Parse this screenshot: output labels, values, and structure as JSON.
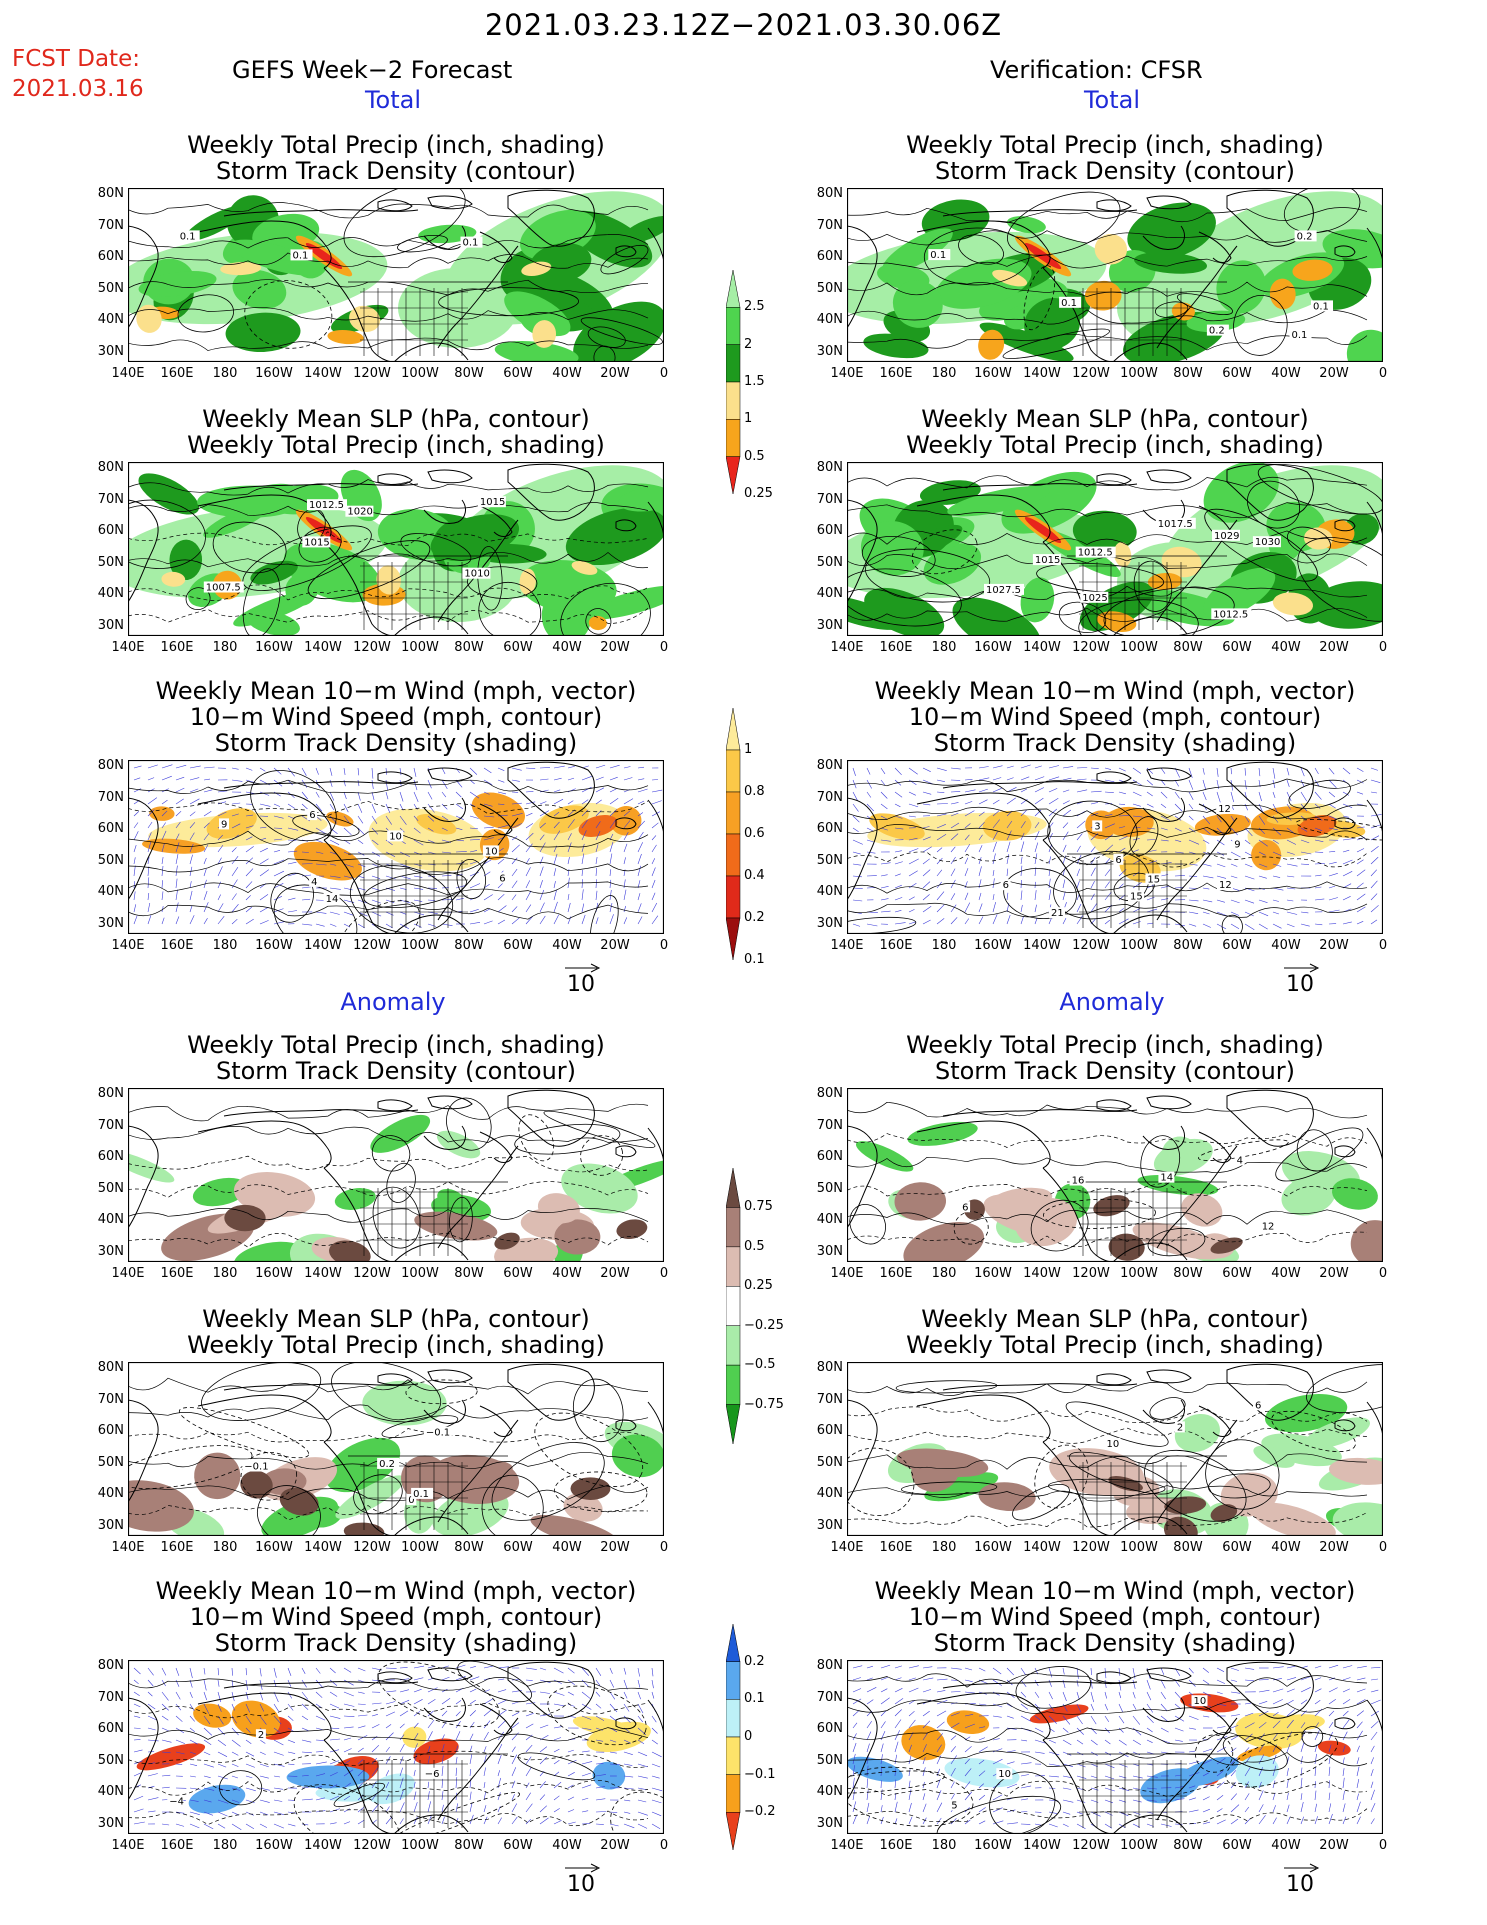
{
  "header": {
    "title": "2021.03.23.12Z−2021.03.30.06Z",
    "fcst_label": "FCST Date:",
    "fcst_date": "2021.03.16",
    "left_heading": "GEFS Week−2 Forecast",
    "right_heading": "Verification: CFSR"
  },
  "sections": {
    "total": "Total",
    "anomaly": "Anomaly"
  },
  "titles": {
    "precip_storm": [
      "Weekly Total Precip (inch, shading)",
      "Storm Track Density (contour)"
    ],
    "slp_precip": [
      "Weekly Mean SLP (hPa, contour)",
      "Weekly Total Precip (inch, shading)"
    ],
    "wind": [
      "Weekly Mean 10−m Wind (mph, vector)",
      "10−m Wind Speed (mph, contour)",
      "Storm Track Density (shading)"
    ]
  },
  "axes": {
    "lat_labels": [
      "80N",
      "70N",
      "60N",
      "50N",
      "40N",
      "30N"
    ],
    "lon_labels": [
      "140E",
      "160E",
      "180",
      "160W",
      "140W",
      "120W",
      "100W",
      "80W",
      "60W",
      "40W",
      "20W",
      "0"
    ],
    "reference_vector": "10"
  },
  "colorbars": {
    "precip_total": {
      "labels": [
        "2.5",
        "2",
        "1.5",
        "1",
        "0.5",
        "0.25"
      ],
      "colors": [
        "#e8251c",
        "#f7a51c",
        "#fbe08c",
        "#1e9a1e",
        "#4fd44f",
        "#a6eea6"
      ]
    },
    "storm_total": {
      "labels": [
        "1",
        "0.8",
        "0.6",
        "0.4",
        "0.2",
        "0.1"
      ],
      "colors": [
        "#9b0e0e",
        "#e02a1a",
        "#f06b1a",
        "#f7a024",
        "#fbc848",
        "#fdeb9a"
      ]
    },
    "precip_anom": {
      "labels": [
        "0.75",
        "0.5",
        "0.25",
        "−0.25",
        "−0.5",
        "−0.75"
      ],
      "colors": [
        "#17961c",
        "#50cf50",
        "#a9eca9",
        "#ffffff",
        "#dcbcb2",
        "#a88077",
        "#6b4a40"
      ]
    },
    "storm_anom": {
      "labels": [
        "0.2",
        "0.1",
        "0",
        "−0.1",
        "−0.2"
      ],
      "colors": [
        "#e8401c",
        "#f7a01c",
        "#fde36a",
        "#bdf0f7",
        "#5aa8ee",
        "#1e5bd8"
      ]
    }
  },
  "contour_labels": {
    "p1": [
      "0.1",
      "0.1",
      "0.1"
    ],
    "p2": [
      "1012.5",
      "1007.5",
      "1010",
      "1015",
      "1020",
      "1015"
    ],
    "p3": [
      "14",
      "10",
      "6",
      "9",
      "6",
      "10",
      "4"
    ],
    "p4": [
      "0.1",
      "0.1",
      "0.1",
      "0.2",
      "0.1",
      "0.2"
    ],
    "p5": [
      "1012.5",
      "1015",
      "1017.5",
      "1012.5",
      "1025",
      "1029",
      "1030",
      "1027.5"
    ],
    "p6": [
      "3",
      "12",
      "6",
      "15",
      "9",
      "12",
      "15",
      "21",
      "6"
    ],
    "p7": [],
    "p8": [
      "0",
      "−0.1",
      "0.1",
      "−0.1",
      "0.2"
    ],
    "p9": [
      "−6",
      "−4",
      "2"
    ],
    "p10": [
      "14",
      "16",
      "12",
      "4",
      "6"
    ],
    "p11": [
      "2",
      "6",
      "10"
    ],
    "p12": [
      "10",
      "10",
      "5"
    ]
  }
}
